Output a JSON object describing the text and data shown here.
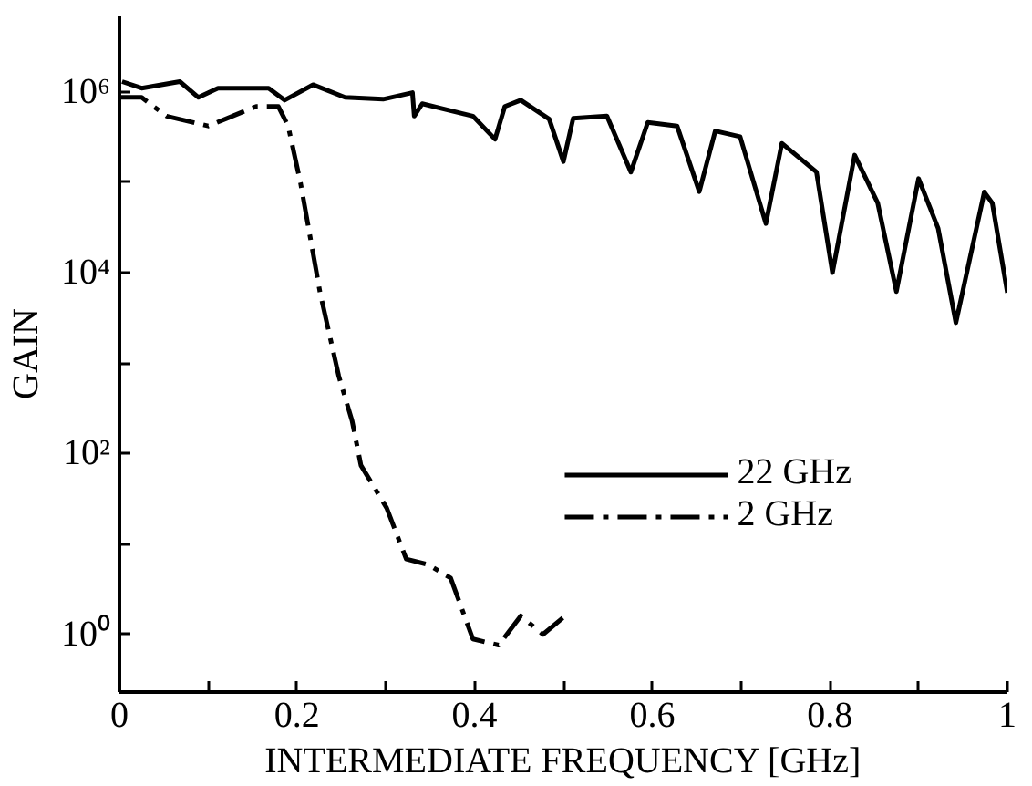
{
  "chart_data": {
    "type": "line",
    "xlabel": "INTERMEDIATE FREQUENCY [GHz]",
    "ylabel": "GAIN",
    "log": "y",
    "grid": false,
    "legend": "bottom right",
    "marker": "none",
    "xlim": [
      0,
      1
    ],
    "ylim": [
      0.23,
      7000000
    ],
    "xticks": [
      0,
      {
        "value": 0.1,
        "label": null
      },
      0.2,
      {
        "value": 0.3,
        "label": null
      },
      0.4,
      {
        "value": 0.5,
        "label": null
      },
      0.6,
      {
        "value": 0.7,
        "label": null
      },
      0.8,
      {
        "value": 0.9,
        "label": null
      },
      1
    ],
    "yticks": [
      {
        "value": 1,
        "label": "10⁰"
      },
      {
        "value": 10,
        "label": null
      },
      {
        "value": 100,
        "label": "10²"
      },
      {
        "value": 1000,
        "label": null
      },
      {
        "value": 10000,
        "label": "10⁴"
      },
      {
        "value": 100000,
        "label": null
      },
      {
        "value": 1000000,
        "label": "10⁶"
      }
    ],
    "series": [
      {
        "name": "22 GHz",
        "color": "#000000",
        "line_style": "solid",
        "x": [
          0.003,
          0.025,
          0.068,
          0.089,
          0.111,
          0.168,
          0.186,
          0.218,
          0.254,
          0.297,
          0.33,
          0.332,
          0.341,
          0.398,
          0.423,
          0.434,
          0.452,
          0.484,
          0.5,
          0.511,
          0.549,
          0.576,
          0.595,
          0.628,
          0.653,
          0.671,
          0.699,
          0.728,
          0.746,
          0.785,
          0.803,
          0.828,
          0.854,
          0.875,
          0.9,
          0.922,
          0.942,
          0.974,
          0.983,
          1.0
        ],
        "values": [
          1300000,
          1100000,
          1300000,
          870000,
          1100000,
          1100000,
          810000,
          1200000,
          870000,
          830000,
          980000,
          540000,
          740000,
          540000,
          300000,
          690000,
          810000,
          500000,
          170000,
          510000,
          540000,
          130000,
          460000,
          420000,
          79000,
          370000,
          320000,
          35000,
          270000,
          130000,
          10000,
          200000,
          59000,
          6200,
          110000,
          31000,
          2800,
          78000,
          59000,
          6000
        ]
      },
      {
        "name": "2 GHz",
        "color": "#000000",
        "line_style": "dashdot",
        "x": [
          0.0,
          0.025,
          0.053,
          0.1,
          0.154,
          0.179,
          0.19,
          0.204,
          0.226,
          0.247,
          0.262,
          0.272,
          0.301,
          0.323,
          0.348,
          0.373,
          0.398,
          0.427,
          0.452,
          0.477,
          0.502
        ],
        "values": [
          870000,
          870000,
          540000,
          420000,
          690000,
          690000,
          420000,
          98000,
          6000,
          720,
          230,
          74,
          25,
          6.8,
          5.9,
          4.2,
          0.89,
          0.76,
          1.6,
          1.0,
          1.6
        ]
      }
    ]
  }
}
